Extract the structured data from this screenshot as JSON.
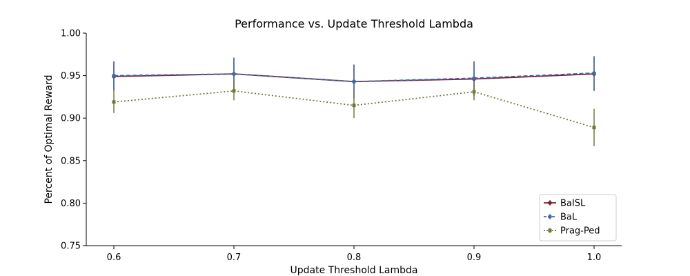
{
  "chart_data": {
    "type": "line",
    "title": "Performance vs. Update Threshold Lambda",
    "xlabel": "Update Threshold Lambda",
    "ylabel": "Percent of Optimal Reward",
    "x": [
      0.6,
      0.7,
      0.8,
      0.9,
      1.0
    ],
    "x_tick_labels": [
      "0.6",
      "0.7",
      "0.8",
      "0.9",
      "1.0"
    ],
    "y_tick_values": [
      0.75,
      0.8,
      0.85,
      0.9,
      0.95,
      1.0
    ],
    "y_tick_labels": [
      "0.75",
      "0.80",
      "0.85",
      "0.90",
      "0.95",
      "1.00"
    ],
    "xlim": [
      0.577,
      1.023
    ],
    "ylim": [
      0.75,
      1.0
    ],
    "grid": false,
    "legend_position": "bottom-right",
    "series": [
      {
        "name": "BaISL",
        "color": "#7b1f2e",
        "line_style": "solid",
        "values": [
          0.949,
          0.952,
          0.943,
          0.946,
          0.952
        ],
        "error": [
          0.017,
          0.019,
          0.02,
          0.02,
          0.02
        ]
      },
      {
        "name": "BaL",
        "color": "#3f68a8",
        "line_style": "dashed",
        "values": [
          0.95,
          0.952,
          0.943,
          0.947,
          0.953
        ],
        "error": [
          0.017,
          0.019,
          0.02,
          0.02,
          0.02
        ]
      },
      {
        "name": "Prag-Ped",
        "color": "#6b7a3a",
        "line_style": "dotted",
        "values": [
          0.919,
          0.932,
          0.915,
          0.931,
          0.889
        ],
        "error": [
          0.013,
          0.011,
          0.015,
          0.01,
          0.022
        ]
      }
    ]
  }
}
